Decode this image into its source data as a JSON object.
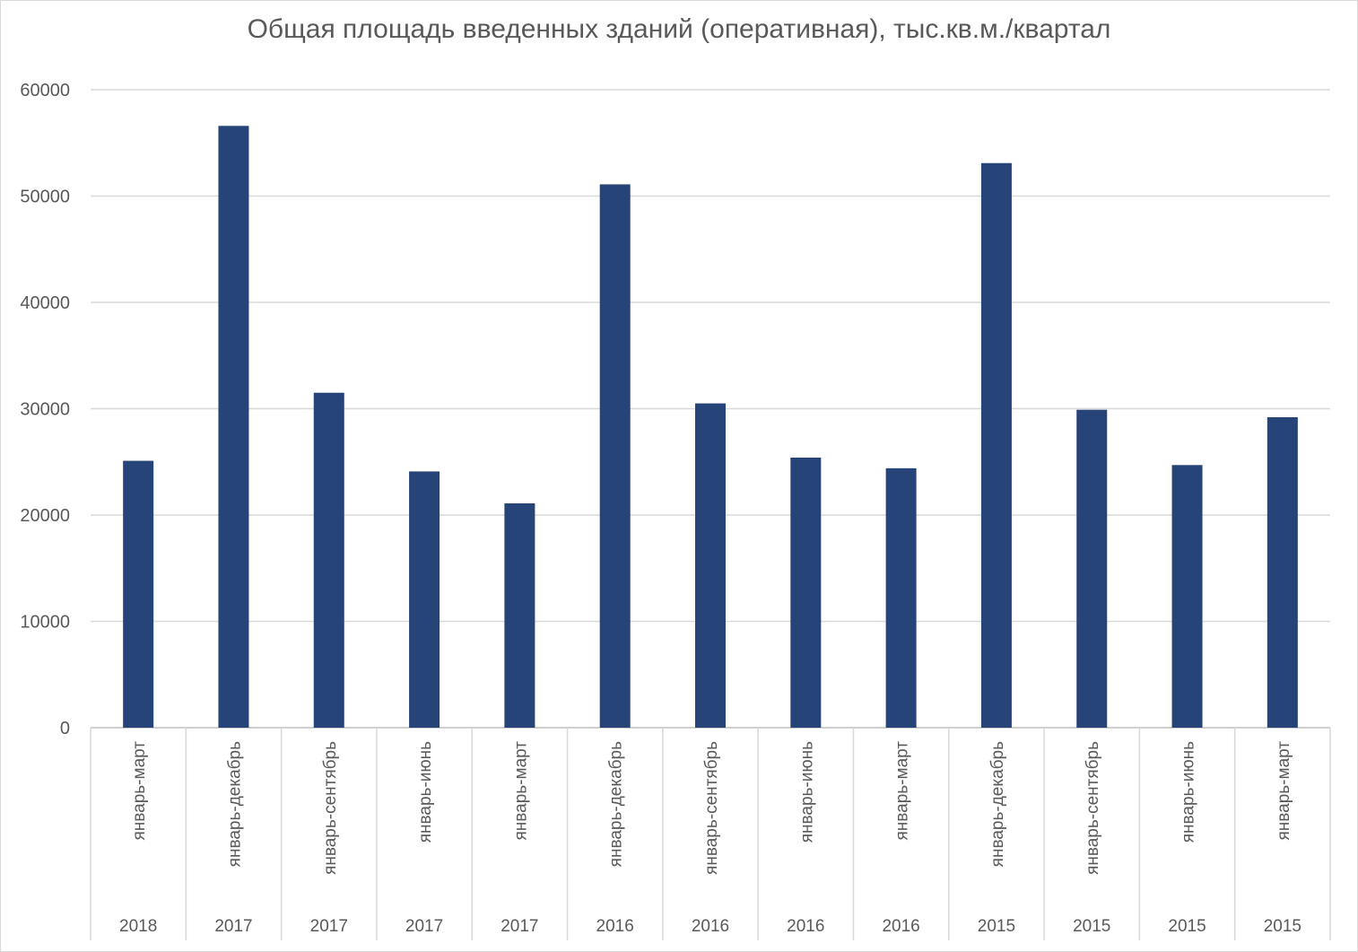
{
  "chart_data": {
    "type": "bar",
    "title": "Общая площадь введенных зданий (оперативная), тыс.кв.м./квартал",
    "xlabel": "",
    "ylabel": "",
    "ylim": [
      0,
      60000
    ],
    "yticks": [
      0,
      10000,
      20000,
      30000,
      40000,
      50000,
      60000
    ],
    "grid": true,
    "legend": "none",
    "bar_color": "#264478",
    "categories": [
      {
        "period": "январь-март",
        "year": "2018"
      },
      {
        "period": "январь-декабрь",
        "year": "2017"
      },
      {
        "period": "январь-сентябрь",
        "year": "2017"
      },
      {
        "period": "январь-июнь",
        "year": "2017"
      },
      {
        "period": "январь-март",
        "year": "2017"
      },
      {
        "period": "январь-декабрь",
        "year": "2016"
      },
      {
        "period": "январь-сентябрь",
        "year": "2016"
      },
      {
        "period": "январь-июнь",
        "year": "2016"
      },
      {
        "period": "январь-март",
        "year": "2016"
      },
      {
        "period": "январь-декабрь",
        "year": "2015"
      },
      {
        "period": "январь-сентябрь",
        "year": "2015"
      },
      {
        "period": "январь-июнь",
        "year": "2015"
      },
      {
        "period": "январь-март",
        "year": "2015"
      }
    ],
    "values": [
      25100,
      56600,
      31500,
      24100,
      21100,
      51100,
      30500,
      25400,
      24400,
      53100,
      29900,
      24700,
      29200
    ]
  }
}
